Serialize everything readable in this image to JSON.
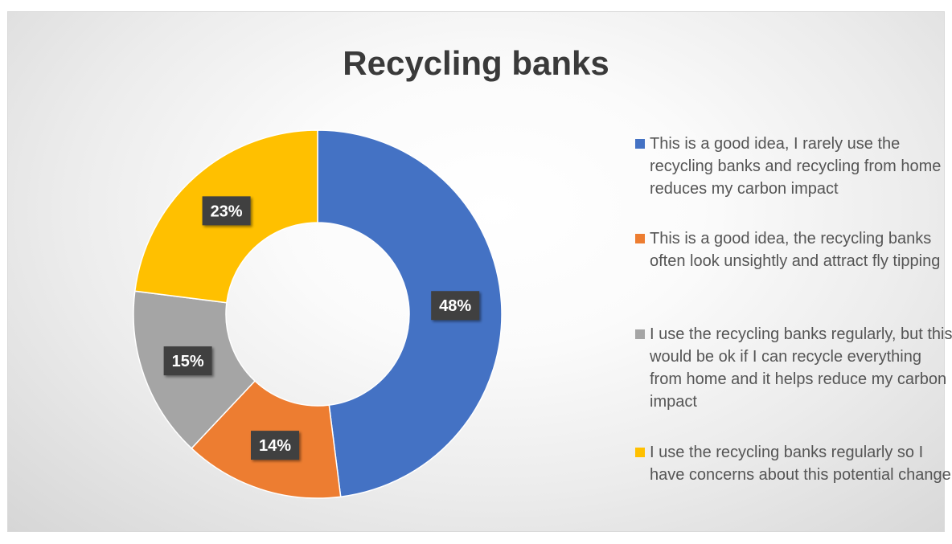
{
  "chart_data": {
    "type": "pie",
    "style": "doughnut",
    "title": "Recycling banks",
    "categories": [
      "This is a good idea, I rarely use the recycling banks and recycling from home reduces my carbon impact",
      "This is a good idea, the recycling banks often look unsightly and attract fly tipping",
      "I use the recycling banks regularly, but this would be ok if I can recycle everything from home and it helps reduce my carbon impact",
      "I use the recycling banks regularly so I have concerns about this potential change"
    ],
    "values": [
      48,
      14,
      15,
      23
    ],
    "data_labels": [
      "48%",
      "14%",
      "15%",
      "23%"
    ],
    "colors": [
      "#4472C4",
      "#ED7D31",
      "#A5A5A5",
      "#FFC000"
    ],
    "legend_position": "right"
  }
}
